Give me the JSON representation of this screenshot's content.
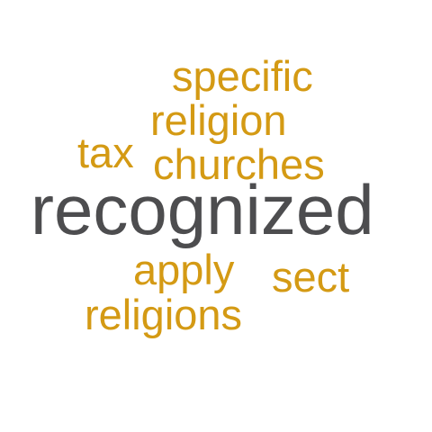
{
  "colors": {
    "accent": "#d49a14",
    "primary": "#4d4d4f",
    "background": "#ffffff"
  },
  "words": [
    {
      "text": "specific",
      "color": "accent"
    },
    {
      "text": "religion",
      "color": "accent"
    },
    {
      "text": "tax",
      "color": "accent"
    },
    {
      "text": "churches",
      "color": "accent"
    },
    {
      "text": "recognized",
      "color": "primary"
    },
    {
      "text": "apply",
      "color": "accent"
    },
    {
      "text": "sect",
      "color": "accent"
    },
    {
      "text": "religions",
      "color": "accent"
    }
  ]
}
